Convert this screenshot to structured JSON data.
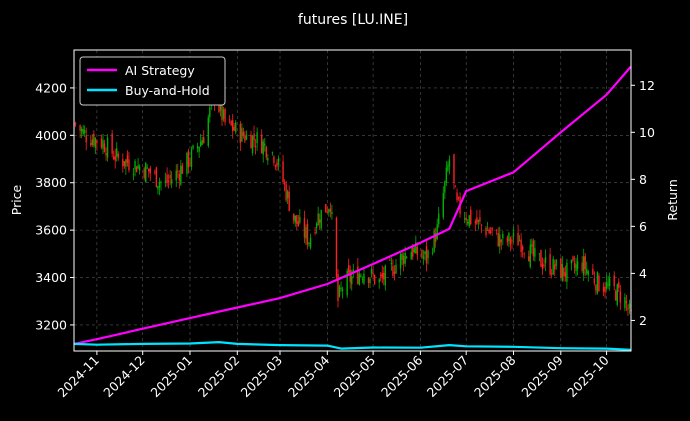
{
  "chart_data": {
    "type": "line",
    "title": "futures [LU.INE]",
    "ylabel_left": "Price",
    "ylabel_right": "Return",
    "xlabel": "",
    "grid": true,
    "legend_position": "top-left",
    "x_range": [
      "2024-10-17",
      "2025-10-17"
    ],
    "ylim_left": [
      3090,
      4360
    ],
    "ylim_right": [
      0.7,
      13.5
    ],
    "x_ticks": [
      "2024-11",
      "2024-12",
      "2025-01",
      "2025-02",
      "2025-03",
      "2025-04",
      "2025-05",
      "2025-06",
      "2025-07",
      "2025-08",
      "2025-09",
      "2025-10"
    ],
    "y_ticks_left": [
      3200,
      3400,
      3600,
      3800,
      4000,
      4200
    ],
    "y_ticks_right": [
      2,
      4,
      6,
      8,
      10,
      12
    ],
    "colors": {
      "ai_strategy": "#ff00ff",
      "buy_and_hold": "#00e5ff",
      "candle_up": "#00b000",
      "candle_down": "#ff2020",
      "grid": "#555555"
    },
    "series": [
      {
        "name": "AI Strategy",
        "axis": "right",
        "points": [
          [
            "2024-10-17",
            1.0
          ],
          [
            "2024-11-01",
            1.2
          ],
          [
            "2024-12-01",
            1.65
          ],
          [
            "2025-01-01",
            2.1
          ],
          [
            "2025-02-01",
            2.55
          ],
          [
            "2025-03-01",
            2.95
          ],
          [
            "2025-04-01",
            3.55
          ],
          [
            "2025-05-01",
            4.4
          ],
          [
            "2025-06-01",
            5.3
          ],
          [
            "2025-06-20",
            5.9
          ],
          [
            "2025-07-01",
            7.5
          ],
          [
            "2025-08-01",
            8.3
          ],
          [
            "2025-09-01",
            10.0
          ],
          [
            "2025-10-01",
            11.6
          ],
          [
            "2025-10-17",
            12.8
          ]
        ]
      },
      {
        "name": "Buy-and-Hold",
        "axis": "right",
        "points": [
          [
            "2024-10-17",
            1.0
          ],
          [
            "2024-11-01",
            0.97
          ],
          [
            "2024-12-01",
            1.0
          ],
          [
            "2025-01-01",
            1.02
          ],
          [
            "2025-01-20",
            1.08
          ],
          [
            "2025-02-01",
            1.0
          ],
          [
            "2025-03-01",
            0.95
          ],
          [
            "2025-04-01",
            0.93
          ],
          [
            "2025-04-10",
            0.8
          ],
          [
            "2025-05-01",
            0.85
          ],
          [
            "2025-06-01",
            0.84
          ],
          [
            "2025-06-20",
            0.95
          ],
          [
            "2025-07-01",
            0.9
          ],
          [
            "2025-08-01",
            0.88
          ],
          [
            "2025-09-01",
            0.82
          ],
          [
            "2025-10-01",
            0.8
          ],
          [
            "2025-10-17",
            0.75
          ]
        ]
      }
    ],
    "price_path": [
      [
        "2024-10-17",
        4050
      ],
      [
        "2024-10-25",
        4000
      ],
      [
        "2024-11-05",
        3970
      ],
      [
        "2024-11-15",
        3900
      ],
      [
        "2024-11-25",
        3880
      ],
      [
        "2024-12-05",
        3850
      ],
      [
        "2024-12-15",
        3790
      ],
      [
        "2024-12-25",
        3850
      ],
      [
        "2025-01-01",
        3900
      ],
      [
        "2025-01-10",
        4000
      ],
      [
        "2025-01-17",
        4170
      ],
      [
        "2025-01-24",
        4050
      ],
      [
        "2025-02-05",
        4000
      ],
      [
        "2025-02-15",
        3980
      ],
      [
        "2025-02-25",
        3920
      ],
      [
        "2025-03-01",
        3850
      ],
      [
        "2025-03-10",
        3650
      ],
      [
        "2025-03-20",
        3560
      ],
      [
        "2025-03-25",
        3650
      ],
      [
        "2025-04-01",
        3700
      ],
      [
        "2025-04-03",
        3720
      ],
      [
        "2025-04-08",
        3300
      ],
      [
        "2025-04-12",
        3380
      ],
      [
        "2025-04-25",
        3430
      ],
      [
        "2025-05-05",
        3380
      ],
      [
        "2025-05-15",
        3450
      ],
      [
        "2025-05-25",
        3520
      ],
      [
        "2025-06-05",
        3480
      ],
      [
        "2025-06-12",
        3600
      ],
      [
        "2025-06-20",
        3900
      ],
      [
        "2025-06-25",
        3700
      ],
      [
        "2025-07-05",
        3640
      ],
      [
        "2025-07-15",
        3600
      ],
      [
        "2025-07-25",
        3550
      ],
      [
        "2025-08-05",
        3560
      ],
      [
        "2025-08-15",
        3480
      ],
      [
        "2025-08-25",
        3450
      ],
      [
        "2025-09-05",
        3420
      ],
      [
        "2025-09-15",
        3460
      ],
      [
        "2025-09-25",
        3380
      ],
      [
        "2025-10-05",
        3350
      ],
      [
        "2025-10-12",
        3320
      ],
      [
        "2025-10-17",
        3230
      ]
    ]
  }
}
